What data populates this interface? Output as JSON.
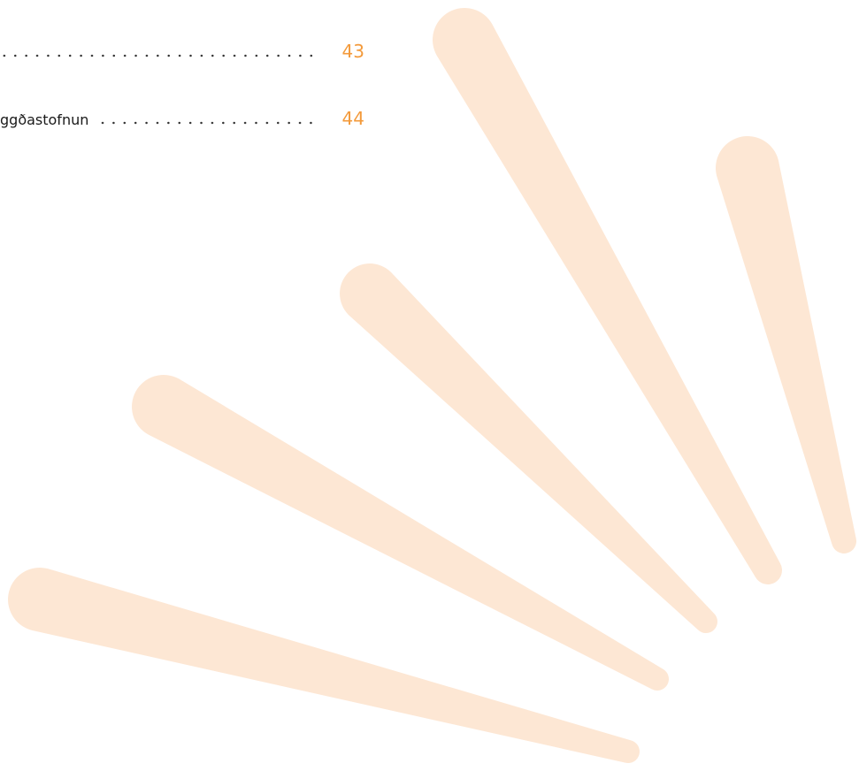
{
  "toc": [
    {
      "page": 43
    },
    {
      "label": "ggðastofnun",
      "page": 44
    }
  ]
}
